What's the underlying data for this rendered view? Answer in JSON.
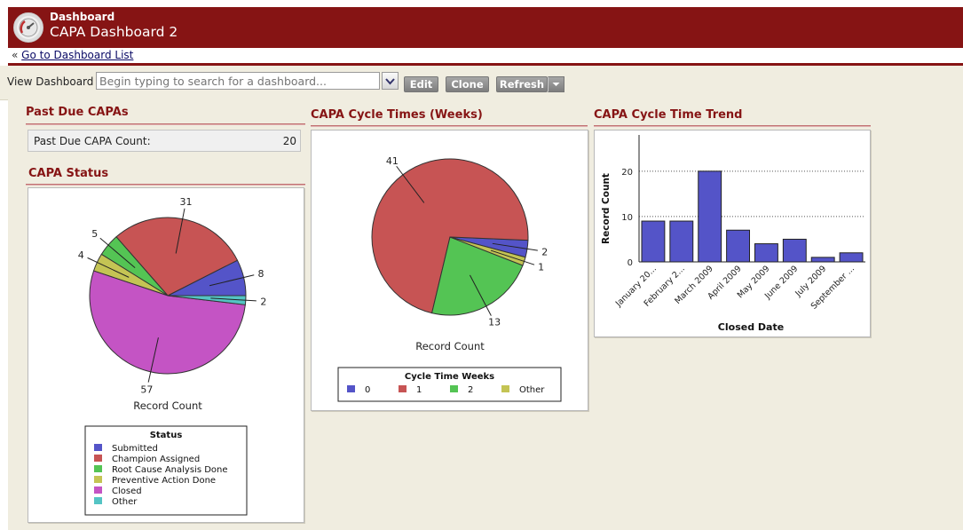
{
  "header": {
    "section": "Dashboard",
    "title": "CAPA Dashboard 2"
  },
  "breadcrumb": {
    "prefix": "«",
    "link": "Go to Dashboard List"
  },
  "toolbar": {
    "view_label": "View Dashboard",
    "search_placeholder": "Begin typing to search for a dashboard...",
    "edit_label": "Edit",
    "clone_label": "Clone",
    "refresh_label": "Refresh"
  },
  "colors": {
    "header": "#861414",
    "title_text": "#861414",
    "page_bg": "#f0ede0",
    "blue": "#5454c8",
    "red": "#c75454",
    "green": "#54c454",
    "olive": "#c4c454",
    "magenta": "#c454c4",
    "teal": "#54c4c4"
  },
  "widgets": {
    "past_due": {
      "title": "Past Due CAPAs",
      "metric_label": "Past Due CAPA Count:",
      "metric_value": "20"
    },
    "capa_status": {
      "title": "CAPA Status"
    },
    "cycle_times": {
      "title": "CAPA Cycle Times (Weeks)"
    },
    "cycle_trend": {
      "title": "CAPA Cycle Time Trend"
    }
  },
  "chart_data": [
    {
      "type": "pie",
      "title": "",
      "xlabel": "Record Count",
      "legend_title": "Status",
      "legend_position": "bottom",
      "labels": [
        "Submitted",
        "Champion Assigned",
        "Root Cause Analysis Done",
        "Preventive Action Done",
        "Closed",
        "Other"
      ],
      "values": [
        8,
        31,
        5,
        4,
        57,
        2
      ],
      "colors": [
        "#5454c8",
        "#c75454",
        "#54c454",
        "#c4c454",
        "#c454c4",
        "#54c4c4"
      ]
    },
    {
      "type": "pie",
      "title": "",
      "xlabel": "Record Count",
      "legend_title": "Cycle Time Weeks",
      "legend_position": "bottom",
      "labels": [
        "0",
        "1",
        "2",
        "Other"
      ],
      "values": [
        2,
        41,
        13,
        1
      ],
      "colors": [
        "#5454c8",
        "#c75454",
        "#54c454",
        "#c4c454"
      ]
    },
    {
      "type": "bar",
      "title": "",
      "xlabel": "Closed Date",
      "ylabel": "Record Count",
      "categories": [
        "January 20...",
        "February 2...",
        "March 2009",
        "April 2009",
        "May 2009",
        "June 2009",
        "July 2009",
        "September ..."
      ],
      "values": [
        9,
        9,
        20,
        7,
        4,
        5,
        1,
        2
      ],
      "ylim": [
        0,
        28
      ],
      "yticks": [
        0,
        10,
        20
      ],
      "grid": true,
      "color": "#5454c8"
    }
  ]
}
